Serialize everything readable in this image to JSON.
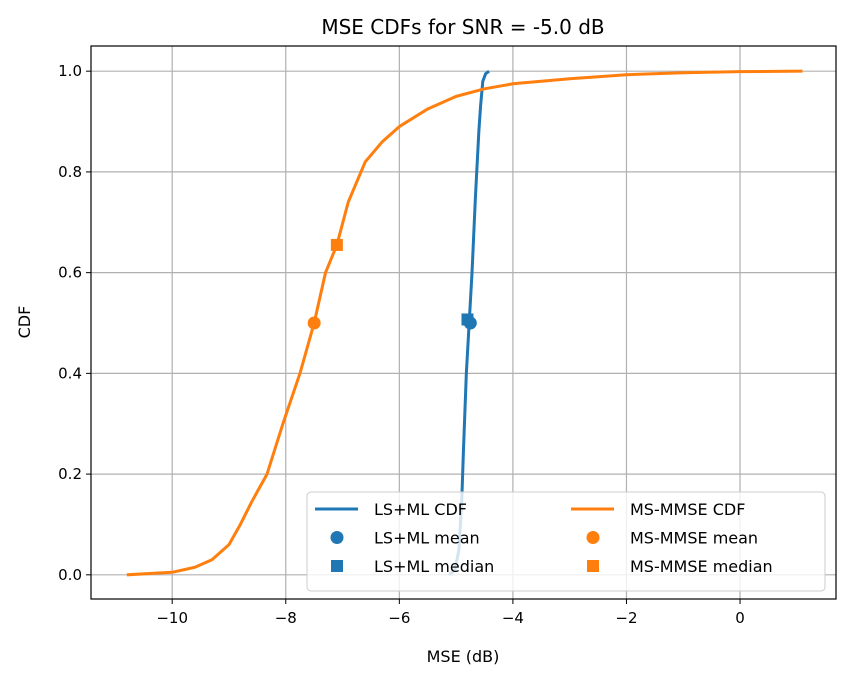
{
  "chart_data": {
    "type": "line",
    "title": "MSE CDFs for SNR = -5.0 dB",
    "xlabel": "MSE (dB)",
    "ylabel": "CDF",
    "xlim": [
      -11.43,
      1.69
    ],
    "ylim": [
      -0.048,
      1.05
    ],
    "xticks": [
      -10,
      -8,
      -6,
      -4,
      -2,
      0
    ],
    "xtick_labels": [
      "−10",
      "−8",
      "−6",
      "−4",
      "−2",
      "0"
    ],
    "yticks": [
      0,
      0.2,
      0.4,
      0.6,
      0.8,
      1.0
    ],
    "ytick_labels": [
      "0.0",
      "0.2",
      "0.4",
      "0.6",
      "0.8",
      "1.0"
    ],
    "grid": true,
    "legend_placement": "lower-right",
    "series": [
      {
        "name": "LS+ML CDF",
        "color": "#1f77b4",
        "x": [
          -5.12,
          -5.02,
          -4.95,
          -4.9,
          -4.87,
          -4.82,
          -4.77,
          -4.72,
          -4.66,
          -4.6,
          -4.57,
          -4.53,
          -4.48,
          -4.42
        ],
        "y": [
          0,
          0.01,
          0.05,
          0.15,
          0.25,
          0.4,
          0.5,
          0.6,
          0.75,
          0.88,
          0.93,
          0.98,
          0.995,
          1.0
        ]
      },
      {
        "name": "MS-MMSE CDF",
        "color": "#ff7f0e",
        "x": [
          -10.8,
          -10,
          -9.6,
          -9.3,
          -9,
          -8.8,
          -8.6,
          -8.33,
          -8.05,
          -7.75,
          -7.5,
          -7.3,
          -7.1,
          -6.9,
          -6.6,
          -6.3,
          -6,
          -5.5,
          -5,
          -4.5,
          -4,
          -3,
          -2,
          -1,
          0,
          1.1
        ],
        "y": [
          0,
          0.005,
          0.015,
          0.03,
          0.06,
          0.1,
          0.145,
          0.2,
          0.3,
          0.4,
          0.5,
          0.6,
          0.655,
          0.74,
          0.82,
          0.86,
          0.89,
          0.925,
          0.95,
          0.965,
          0.975,
          0.985,
          0.993,
          0.997,
          0.999,
          1.0
        ]
      }
    ],
    "markers": [
      {
        "name": "LS+ML mean",
        "color": "#1f77b4",
        "shape": "circle",
        "x": -4.75,
        "y": 0.5
      },
      {
        "name": "LS+ML median",
        "color": "#1f77b4",
        "shape": "square",
        "x": -4.8,
        "y": 0.507
      },
      {
        "name": "MS-MMSE mean",
        "color": "#ff7f0e",
        "shape": "circle",
        "x": -7.5,
        "y": 0.5
      },
      {
        "name": "MS-MMSE median",
        "color": "#ff7f0e",
        "shape": "square",
        "x": -7.1,
        "y": 0.655
      }
    ]
  }
}
